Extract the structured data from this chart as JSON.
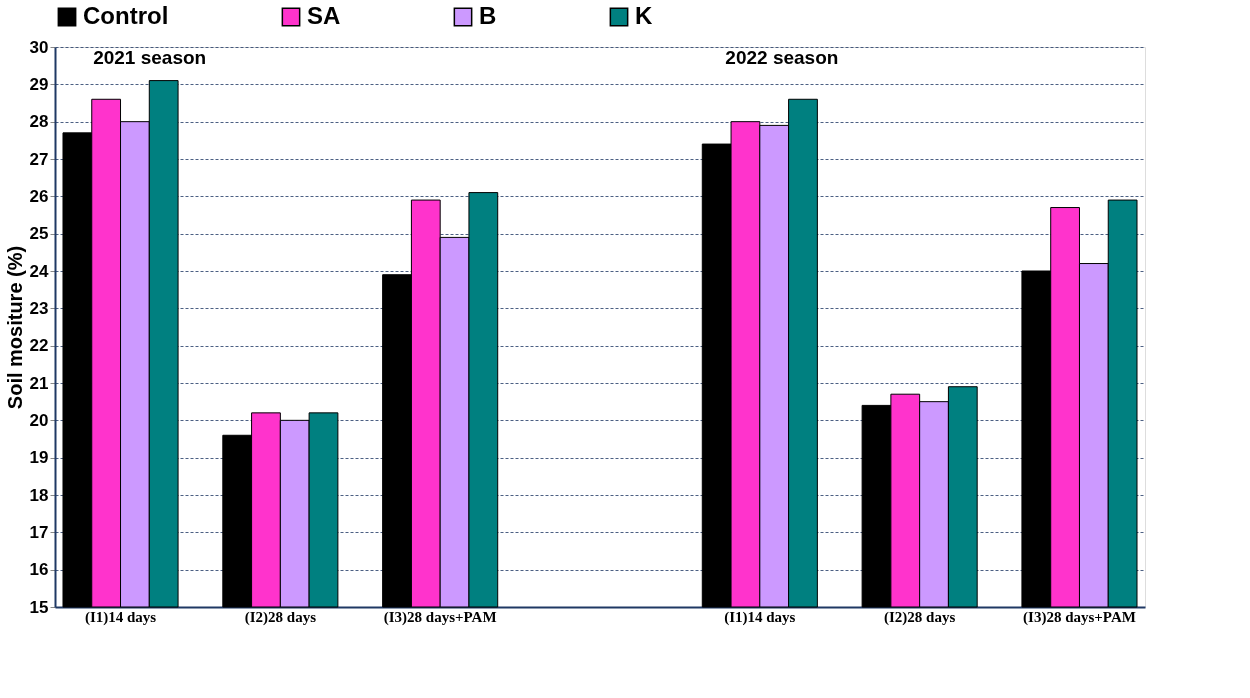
{
  "chart_data": {
    "type": "bar",
    "ylabel": "Soil mositure (%)",
    "categories": [
      "(I1)14 days",
      "(I2)28 days",
      "(I3)28 days+PAM",
      null,
      "(I1)14 days",
      "(I2)28 days",
      "(I3)28 days+PAM"
    ],
    "series": [
      {
        "name": "Control",
        "color": "#000000",
        "values": [
          27.7,
          19.6,
          23.9,
          null,
          27.4,
          20.4,
          24.0
        ]
      },
      {
        "name": "SA",
        "color": "#ff33cc",
        "values": [
          28.6,
          20.2,
          25.9,
          null,
          28.0,
          20.7,
          25.7
        ]
      },
      {
        "name": "B",
        "color": "#cc99ff",
        "values": [
          28.0,
          20.0,
          24.9,
          null,
          27.9,
          20.5,
          24.2
        ]
      },
      {
        "name": "K",
        "color": "#008080",
        "values": [
          29.1,
          20.2,
          26.1,
          null,
          28.6,
          20.9,
          25.9
        ]
      }
    ],
    "ylim": [
      15,
      30
    ],
    "yticks": [
      15,
      16,
      17,
      18,
      19,
      20,
      21,
      22,
      23,
      24,
      25,
      26,
      27,
      28,
      29,
      30
    ],
    "grid": "y",
    "legend": "top",
    "annotations": [
      "2021 season",
      "2022 season"
    ]
  }
}
